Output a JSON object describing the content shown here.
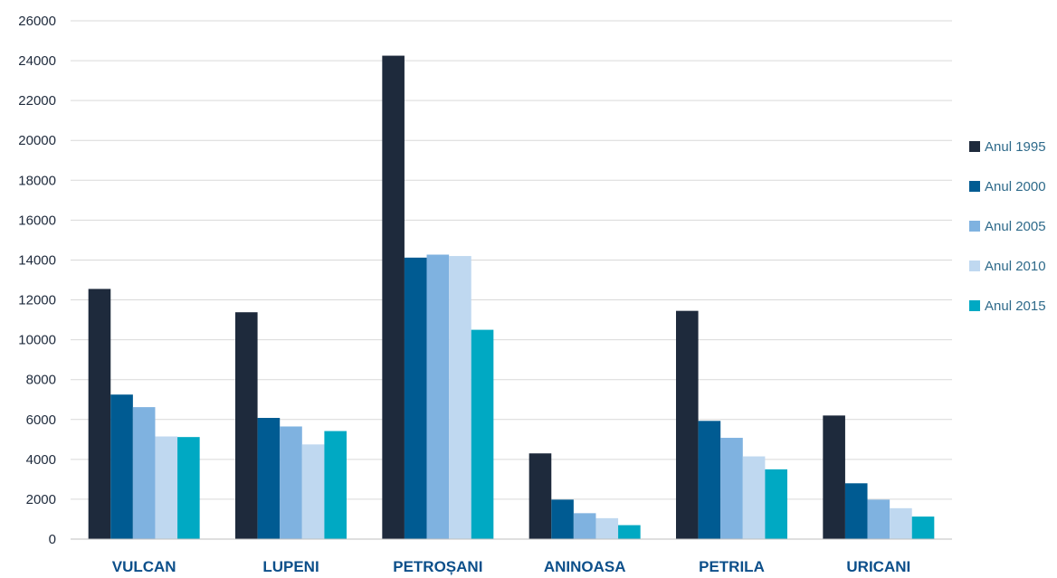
{
  "chart_data": {
    "type": "bar",
    "title": "",
    "xlabel": "",
    "ylabel": "",
    "ylim": [
      0,
      26000
    ],
    "yticks": [
      0,
      2000,
      4000,
      6000,
      8000,
      10000,
      12000,
      14000,
      16000,
      18000,
      20000,
      22000,
      24000,
      26000
    ],
    "grid": true,
    "legend_position": "right",
    "categories": [
      "VULCAN",
      "LUPENI",
      "PETROȘANI",
      "ANINOASA",
      "PETRILA",
      "URICANI"
    ],
    "series": [
      {
        "name": "Anul 1995",
        "color": "#1e2a3c",
        "values": [
          12550,
          11380,
          24250,
          4300,
          11450,
          6200
        ]
      },
      {
        "name": "Anul 2000",
        "color": "#005b92",
        "values": [
          7250,
          6080,
          14120,
          1980,
          5930,
          2800
        ]
      },
      {
        "name": "Anul 2005",
        "color": "#7fb2e0",
        "values": [
          6620,
          5650,
          14270,
          1300,
          5080,
          1980
        ]
      },
      {
        "name": "Anul 2010",
        "color": "#bfd8f0",
        "values": [
          5150,
          4750,
          14200,
          1050,
          4150,
          1550
        ]
      },
      {
        "name": "Anul 2015",
        "color": "#00a9c3",
        "values": [
          5120,
          5420,
          10500,
          700,
          3500,
          1130
        ]
      }
    ]
  }
}
